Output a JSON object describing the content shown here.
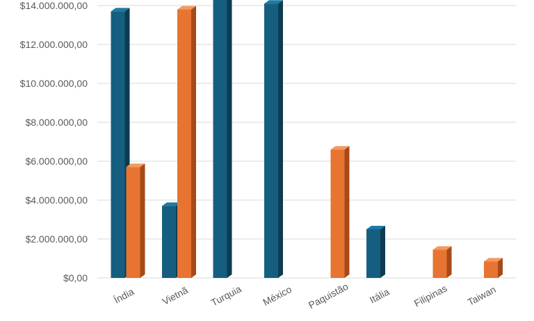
{
  "chart_data": {
    "type": "bar",
    "style": "3d-clustered-column",
    "categories": [
      "Índia",
      "Vietnã",
      "Turquia",
      "México",
      "Paquistão",
      "Itália",
      "Filipinas",
      "Taiwan"
    ],
    "series": [
      {
        "values": [
          13700000,
          3700000,
          14600000,
          14100000,
          null,
          2500000,
          null,
          null
        ]
      },
      {
        "values": [
          5700000,
          13800000,
          null,
          null,
          6600000,
          null,
          1450000,
          850000
        ]
      }
    ],
    "ylim": [
      0,
      14000000
    ],
    "yticks": [
      0,
      2000000,
      4000000,
      6000000,
      8000000,
      10000000,
      12000000,
      14000000
    ],
    "ytick_labels": [
      "$0,00",
      "$2.000.000,00",
      "$4.000.000,00",
      "$6.000.000,00",
      "$8.000.000,00",
      "$10.000.000,00",
      "$12.000.000,00",
      "$14.000.000,00"
    ],
    "grid": true,
    "title": "",
    "xlabel": "",
    "ylabel": ""
  },
  "colors": {
    "series": [
      "#155e7f",
      "#e77432"
    ],
    "series_side": [
      "#0d3c52",
      "#a84a17"
    ],
    "series_top": [
      "#1d7aa5",
      "#f39a5e"
    ],
    "grid": "#d9d9d9",
    "axis_text": "#595959"
  }
}
